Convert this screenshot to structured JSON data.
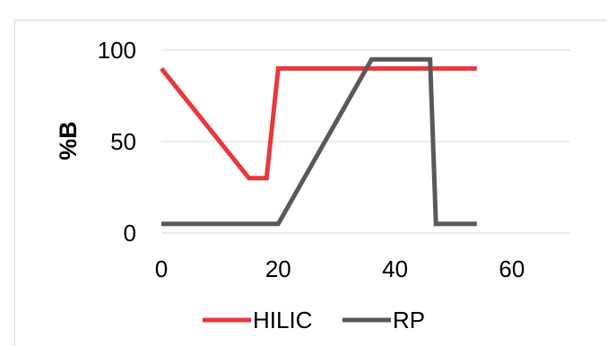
{
  "chart_data": {
    "type": "line",
    "title": "",
    "xlabel": "",
    "ylabel": "%B",
    "xlim": [
      0,
      70
    ],
    "ylim": [
      0,
      100
    ],
    "x_ticks": [
      "0",
      "20",
      "40",
      "60"
    ],
    "y_ticks": [
      "0",
      "50",
      "100"
    ],
    "grid": "horizontal",
    "legend_position": "bottom",
    "series": [
      {
        "name": "HILIC",
        "color": "#e8383d",
        "points": [
          [
            0,
            90
          ],
          [
            15,
            30
          ],
          [
            18,
            30
          ],
          [
            20,
            90
          ],
          [
            54,
            90
          ]
        ]
      },
      {
        "name": "RP",
        "color": "#595959",
        "points": [
          [
            0,
            5
          ],
          [
            20,
            5
          ],
          [
            36,
            95
          ],
          [
            46,
            95
          ],
          [
            47,
            5
          ],
          [
            54,
            5
          ]
        ]
      }
    ]
  }
}
